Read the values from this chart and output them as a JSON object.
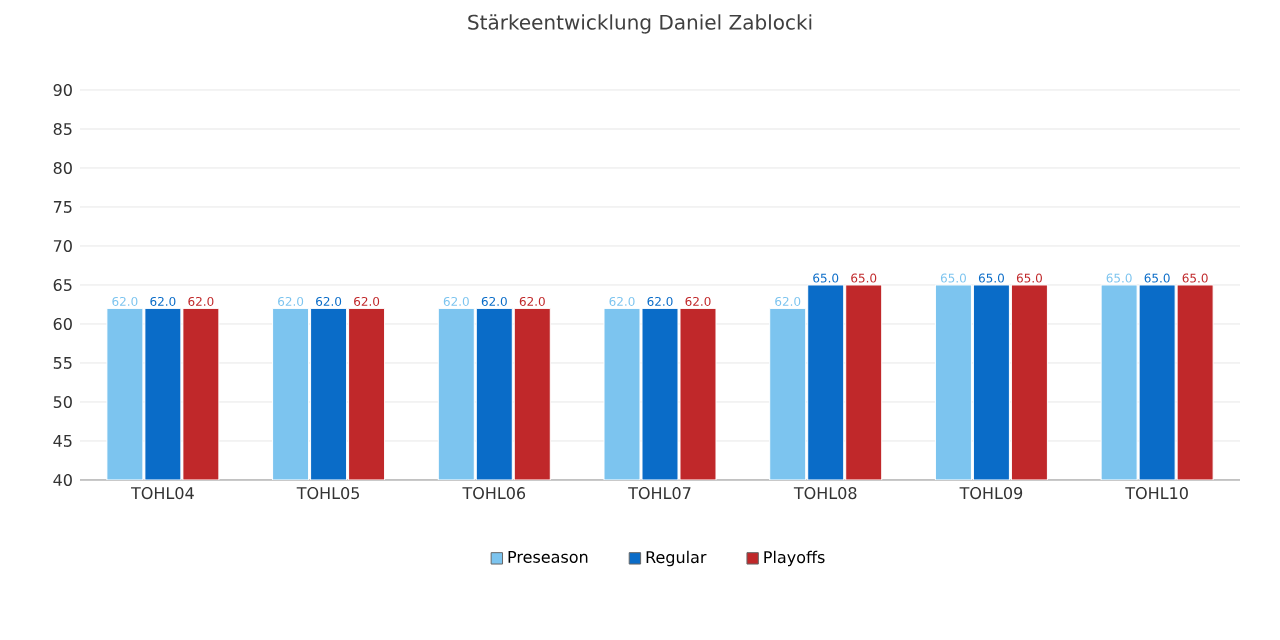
{
  "chart_data": {
    "type": "bar",
    "title": "Stärkeentwicklung Daniel Zablocki",
    "categories": [
      "TOHL04",
      "TOHL05",
      "TOHL06",
      "TOHL07",
      "TOHL08",
      "TOHL09",
      "TOHL10"
    ],
    "series": [
      {
        "name": "Preseason",
        "color": "#7cc4ef",
        "values": [
          62,
          62,
          62,
          62,
          62,
          65,
          65
        ],
        "value_labels": [
          "62.0",
          "62.0",
          "62.0",
          "62.0",
          "62.0",
          "65.0",
          "65.0"
        ]
      },
      {
        "name": "Regular",
        "color": "#0a6cc8",
        "values": [
          62,
          62,
          62,
          62,
          65,
          65,
          65
        ],
        "value_labels": [
          "62.0",
          "62.0",
          "62.0",
          "62.0",
          "65.0",
          "65.0",
          "65.0"
        ]
      },
      {
        "name": "Playoffs",
        "color": "#c0282a",
        "values": [
          62,
          62,
          62,
          62,
          65,
          65,
          65
        ],
        "value_labels": [
          "62.0",
          "62.0",
          "62.0",
          "62.0",
          "65.0",
          "65.0",
          "65.0"
        ]
      }
    ],
    "ylim": [
      40,
      90
    ],
    "yticks": [
      40,
      45,
      50,
      55,
      60,
      65,
      70,
      75,
      80,
      85,
      90
    ],
    "grid": "y",
    "legend": "bottom"
  }
}
